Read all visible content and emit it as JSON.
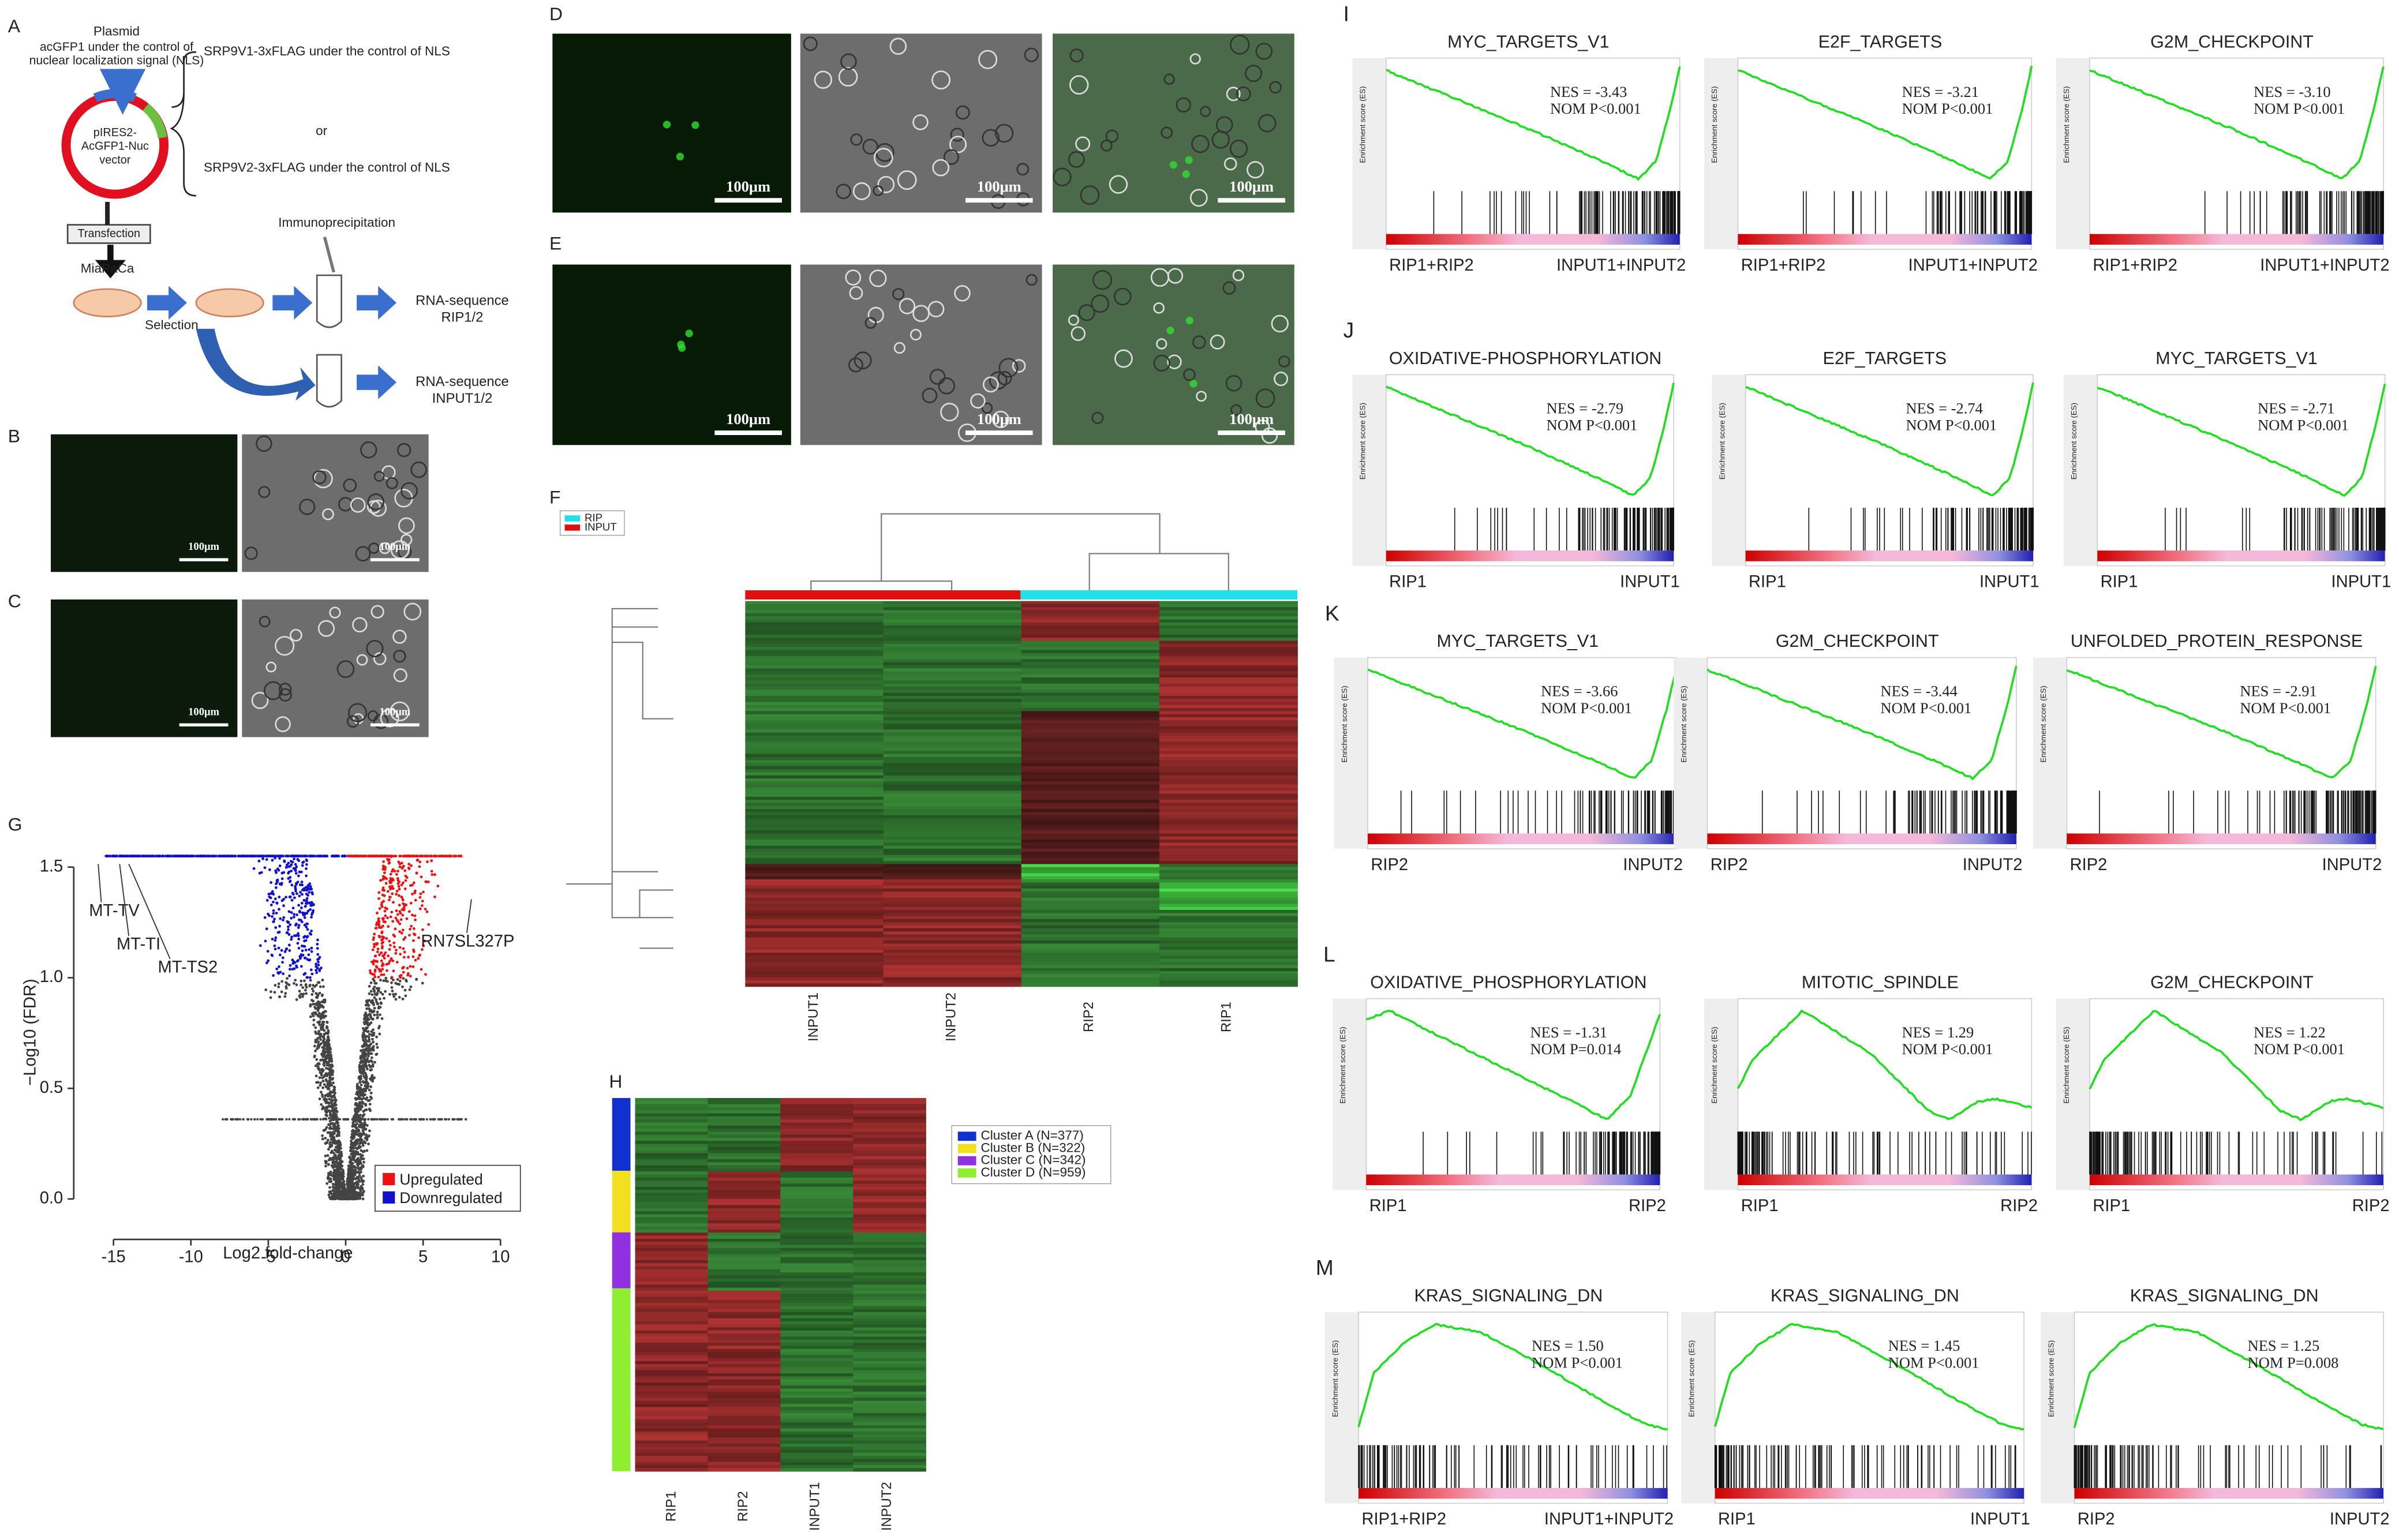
{
  "panelA": {
    "letter": "A",
    "plasmid": "Plasmid",
    "acgfp": [
      "acGFP1 under the control of",
      "nuclear localization signal (NLS)"
    ],
    "srp1": "SRP9V1-3xFLAG under the control of NLS",
    "or": "or",
    "srp2": "SRP9V2-3xFLAG under the control of NLS",
    "vector": [
      "pIRES2-",
      "AcGFP1-Nuc",
      "vector"
    ],
    "transfection": "Transfection",
    "cell": "MiaPaCa",
    "selection": "Selection",
    "ip": "Immunoprecipitation",
    "rip": [
      "RNA-sequence",
      "RIP1/2"
    ],
    "input": [
      "RNA-sequence",
      "INPUT1/2"
    ]
  },
  "panel_letters": [
    "B",
    "C",
    "D",
    "E",
    "F",
    "G",
    "H"
  ],
  "scale_bar": "100μm",
  "heatmapF": {
    "legend": [
      "RIP",
      "INPUT"
    ],
    "columns": [
      "INPUT1",
      "INPUT2",
      "RIP2",
      "RIP1"
    ]
  },
  "volcano": {
    "xlabel": "Log2 fold-change",
    "ylabel": "−Log10 (FDR)",
    "xlim": [
      -17,
      11.5
    ],
    "ylim": [
      -0.1,
      1.65
    ],
    "xticks": [
      -15,
      -10,
      -5,
      0,
      5,
      10
    ],
    "yticks": [
      {
        "value": 0,
        "label": "0.0"
      },
      0.5,
      {
        "value": 1,
        "label": "1.0"
      },
      1.5
    ],
    "annotations": [
      "MT-TV",
      "MT-TI",
      "MT-TS2",
      "RN7SL327P"
    ],
    "legend": [
      {
        "name": "Upregulated",
        "color": "#ee1111"
      },
      {
        "name": "Downregulated",
        "color": "#1111cc"
      }
    ]
  },
  "heatmapH": {
    "legend": [
      {
        "name": "Cluster A (N=377)",
        "color": "#1030d0"
      },
      {
        "name": "Cluster B (N=322)",
        "color": "#f0e020"
      },
      {
        "name": "Cluster C (N=342)",
        "color": "#9030e0"
      },
      {
        "name": "Cluster D (N=959)",
        "color": "#90ee30"
      }
    ],
    "columns": [
      "RIP1",
      "RIP2",
      "INPUT1",
      "INPUT2"
    ]
  },
  "gsea": {
    "ylabel": "Enrichment score (ES)",
    "rows": [
      {
        "letter": "I",
        "panels": [
          {
            "title": "MYC_TARGETS_V1",
            "nes": "NES = -3.43",
            "nom": "NOM P<0.001",
            "left": "RIP1+RIP2",
            "right": "INPUT1+INPUT2"
          },
          {
            "title": "E2F_TARGETS",
            "nes": "NES = -3.21",
            "nom": "NOM P<0.001",
            "left": "RIP1+RIP2",
            "right": "INPUT1+INPUT2"
          },
          {
            "title": "G2M_CHECKPOINT",
            "nes": "NES = -3.10",
            "nom": "NOM P<0.001",
            "left": "RIP1+RIP2",
            "right": "INPUT1+INPUT2"
          }
        ]
      },
      {
        "letter": "J",
        "panels": [
          {
            "title": "OXIDATIVE-PHOSPHORYLATION",
            "nes": "NES = -2.79",
            "nom": "NOM P<0.001",
            "left": "RIP1",
            "right": "INPUT1"
          },
          {
            "title": "E2F_TARGETS",
            "nes": "NES = -2.74",
            "nom": "NOM P<0.001",
            "left": "RIP1",
            "right": "INPUT1"
          },
          {
            "title": "MYC_TARGETS_V1",
            "nes": "NES = -2.71",
            "nom": "NOM P<0.001",
            "left": "RIP1",
            "right": "INPUT1"
          }
        ]
      },
      {
        "letter": "K",
        "panels": [
          {
            "title": "MYC_TARGETS_V1",
            "nes": "NES = -3.66",
            "nom": "NOM P<0.001",
            "left": "RIP2",
            "right": "INPUT2"
          },
          {
            "title": "G2M_CHECKPOINT",
            "nes": "NES = -3.44",
            "nom": "NOM P<0.001",
            "left": "RIP2",
            "right": "INPUT2"
          },
          {
            "title": "UNFOLDED_PROTEIN_RESPONSE",
            "nes": "NES = -2.91",
            "nom": "NOM P<0.001",
            "left": "RIP2",
            "right": "INPUT2"
          }
        ]
      },
      {
        "letter": "L",
        "panels": [
          {
            "title": "OXIDATIVE_PHOSPHORYLATION",
            "nes": "NES = -1.31",
            "nom": "NOM P=0.014",
            "left": "RIP1",
            "right": "RIP2"
          },
          {
            "title": "MITOTIC_SPINDLE",
            "nes": "NES = 1.29",
            "nom": "NOM P<0.001",
            "left": "RIP1",
            "right": "RIP2"
          },
          {
            "title": "G2M_CHECKPOINT",
            "nes": "NES = 1.22",
            "nom": "NOM P<0.001",
            "left": "RIP1",
            "right": "RIP2"
          }
        ]
      },
      {
        "letter": "M",
        "panels": [
          {
            "title": "KRAS_SIGNALING_DN",
            "nes": "NES = 1.50",
            "nom": "NOM P<0.001",
            "left": "RIP1+RIP2",
            "right": "INPUT1+INPUT2"
          },
          {
            "title": "KRAS_SIGNALING_DN",
            "nes": "NES = 1.45",
            "nom": "NOM P<0.001",
            "left": "RIP1",
            "right": "INPUT1"
          },
          {
            "title": "KRAS_SIGNALING_DN",
            "nes": "NES = 1.25",
            "nom": "NOM P=0.008",
            "left": "RIP2",
            "right": "INPUT2"
          }
        ]
      }
    ]
  }
}
